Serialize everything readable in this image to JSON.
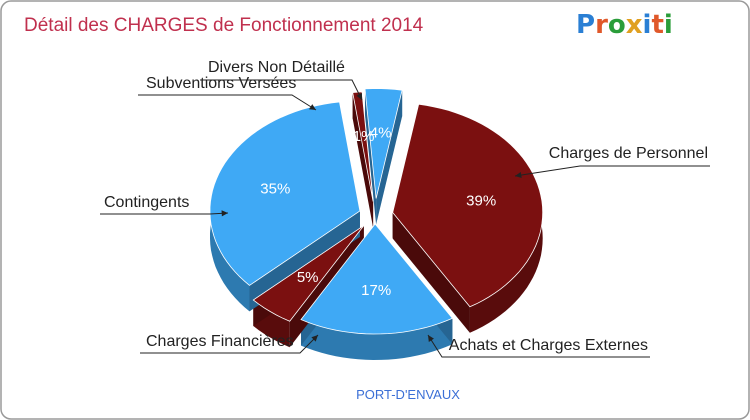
{
  "chart_data": {
    "type": "pie",
    "title": "Détail des CHARGES de Fonctionnement 2014",
    "subtitle": "PORT-D'ENVAUX",
    "slices": [
      {
        "name": "Charges de Personnel",
        "value": 39,
        "label": "39%",
        "color": "#7b1010"
      },
      {
        "name": "Achats et Charges Externes",
        "value": 17,
        "label": "17%",
        "color": "#3fa9f5"
      },
      {
        "name": "Charges Financières",
        "value": 5,
        "label": "5%",
        "color": "#7b1010"
      },
      {
        "name": "Contingents",
        "value": 35,
        "label": "35%",
        "color": "#3fa9f5"
      },
      {
        "name": "Subventions Versées",
        "value": 1,
        "label": "1%",
        "color": "#7b1010"
      },
      {
        "name": "Divers Non Détaillé",
        "value": 4,
        "label": "4%",
        "color": "#3fa9f5"
      }
    ]
  },
  "logo": {
    "text": "Proxiti",
    "letters": [
      "P",
      "r",
      "o",
      "x",
      "i",
      "t",
      "i"
    ],
    "colors": [
      "#2a7fd4",
      "#e0582a",
      "#2a9d3a",
      "#e0a020",
      "#2a7fd4",
      "#e0582a",
      "#2a9d3a"
    ]
  },
  "colors": {
    "border": "#9a9a9a",
    "subtitle": "#3b6fd6",
    "title": "#c0304e"
  }
}
